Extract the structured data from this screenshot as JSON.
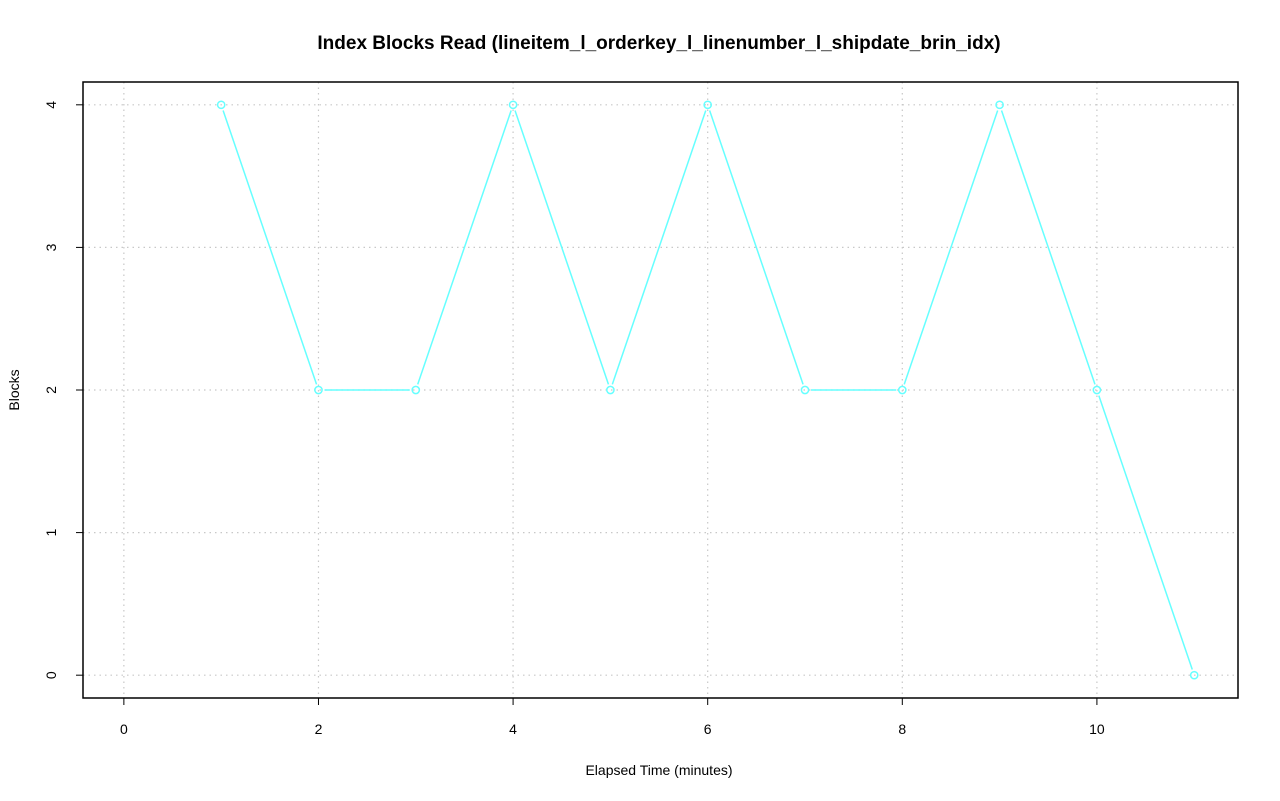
{
  "chart_data": {
    "type": "line",
    "title": "Index Blocks Read (lineitem_l_orderkey_l_linenumber_l_shipdate_brin_idx)",
    "xlabel": "Elapsed Time (minutes)",
    "ylabel": "Blocks",
    "xlim": [
      -0.42,
      11.45
    ],
    "ylim": [
      -0.16,
      4.16
    ],
    "x_ticks": [
      0,
      2,
      4,
      6,
      8,
      10
    ],
    "x_tick_labels": [
      "0",
      "2",
      "4",
      "6",
      "8",
      "10"
    ],
    "y_ticks": [
      0,
      1,
      2,
      3,
      4
    ],
    "y_tick_labels": [
      "0",
      "1",
      "2",
      "3",
      "4"
    ],
    "grid": true,
    "series": [
      {
        "x": [
          1,
          2,
          3,
          4,
          5,
          6,
          7,
          8,
          9,
          10,
          11
        ],
        "values": [
          4,
          2,
          2,
          4,
          2,
          4,
          2,
          2,
          4,
          2,
          0
        ],
        "color": "#66ffff"
      }
    ]
  }
}
